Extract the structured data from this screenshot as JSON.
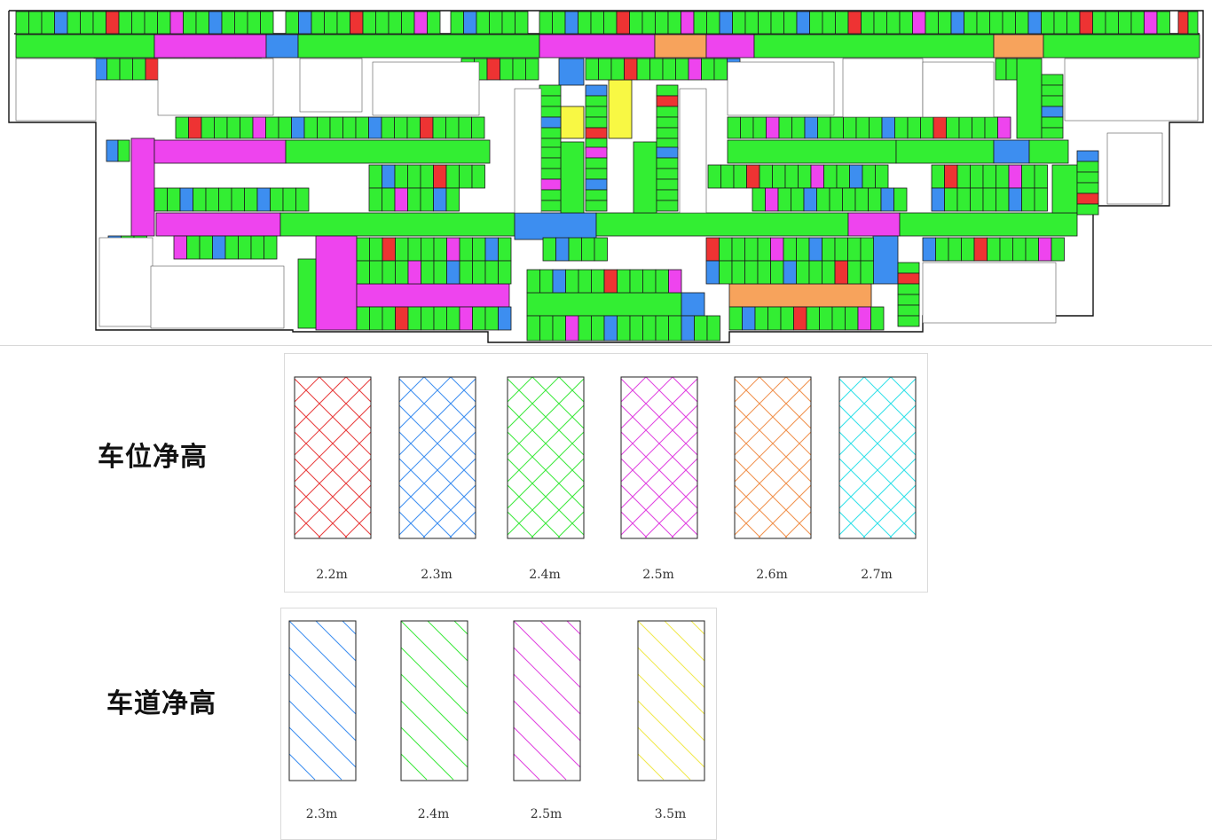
{
  "floor_plan": {
    "colors": {
      "h22": "#ee3333",
      "h23": "#3d8ef0",
      "h24": "#33ee33",
      "h25": "#ee44ee",
      "h26": "#f7a35c",
      "h27": "#33eeee",
      "h35": "#f8f844",
      "lane_blue": "#55a2f2"
    }
  },
  "space_legend": {
    "title": "车位净高",
    "items": [
      {
        "label": "2.2m",
        "color": "#e83c3c"
      },
      {
        "label": "2.3m",
        "color": "#3d8ef0"
      },
      {
        "label": "2.4m",
        "color": "#3ce83c"
      },
      {
        "label": "2.5m",
        "color": "#e040e0"
      },
      {
        "label": "2.6m",
        "color": "#f0904c"
      },
      {
        "label": "2.7m",
        "color": "#30e0e8"
      }
    ]
  },
  "lane_legend": {
    "title": "车道净高",
    "items": [
      {
        "label": "2.3m",
        "color": "#3d8ef0"
      },
      {
        "label": "2.4m",
        "color": "#3ce83c"
      },
      {
        "label": "2.5m",
        "color": "#e040e0"
      },
      {
        "label": "3.5m",
        "color": "#f0e84c"
      }
    ]
  }
}
